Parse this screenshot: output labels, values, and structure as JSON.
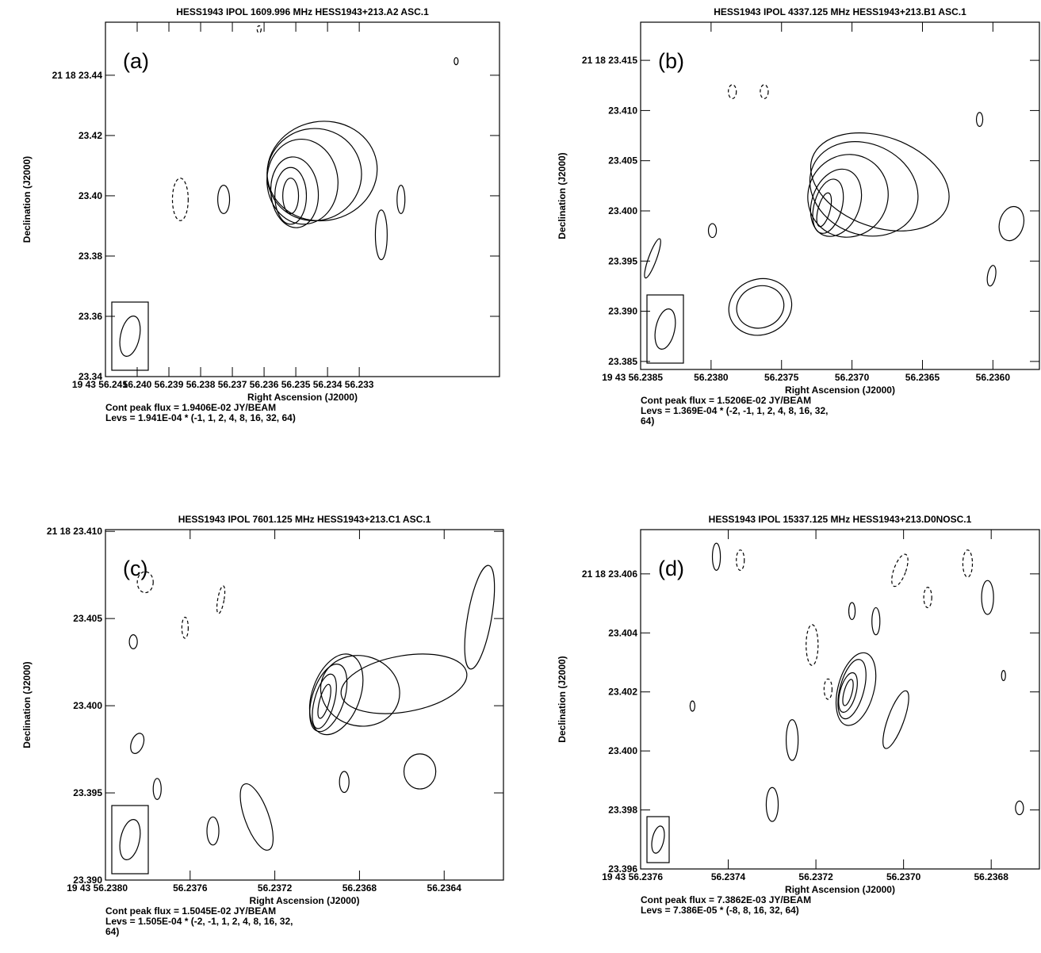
{
  "chart_data": [
    {
      "type": "contour",
      "title": "HESS1943  IPOL  1609.996 MHz  HESS1943+213.A2 ASC.1",
      "panel_label": "(a)",
      "xlabel": "Right Ascension (J2000)",
      "ylabel": "Declination (J2000)",
      "xlim": [
        56.241,
        56.22858
      ],
      "ylim": [
        23.34,
        23.4576
      ],
      "xticks": [
        {
          "value": 56.241,
          "label": "19 43 56.241"
        },
        {
          "value": 56.24,
          "label": "56.240"
        },
        56.239,
        56.238,
        56.237,
        56.236,
        56.235,
        56.234,
        56.233
      ],
      "yticks": [
        23.34,
        23.36,
        23.38,
        {
          "value": 23.4,
          "label": "23.40"
        },
        23.42,
        {
          "value": 23.44,
          "label": "21 18 23.44"
        }
      ],
      "peak_flux": "Cont peak flux =  1.9406E-02 JY/BEAM",
      "levels": [
        "Levs = 1.941E-04 * (-1, 1, 2, 4, 8, 16, 32, 64)"
      ]
    },
    {
      "type": "contour",
      "title": "HESS1943  IPOL  4337.125 MHz  HESS1943+213.B1 ASC.1",
      "panel_label": "(b)",
      "xlabel": "Right Ascension (J2000)",
      "ylabel": "Declination (J2000)",
      "xlim": [
        56.2385,
        56.23567
      ],
      "ylim": [
        23.3842,
        23.4188
      ],
      "xticks": [
        {
          "value": 56.2385,
          "label": "19 43 56.2385"
        },
        {
          "value": 56.238,
          "label": "56.2380"
        },
        56.2375,
        {
          "value": 56.237,
          "label": "56.2370"
        },
        56.2365,
        {
          "value": 56.236,
          "label": "56.2360"
        }
      ],
      "yticks": [
        23.385,
        {
          "value": 23.39,
          "label": "23.390"
        },
        23.395,
        {
          "value": 23.4,
          "label": "23.400"
        },
        23.405,
        {
          "value": 23.41,
          "label": "23.410"
        },
        {
          "value": 23.415,
          "label": "21 18 23.415"
        }
      ],
      "peak_flux": "Cont peak flux =  1.5206E-02 JY/BEAM",
      "levels": [
        "Levs = 1.369E-04 * (-2, -1, 1, 2, 4, 8, 16, 32,",
        "64)"
      ]
    },
    {
      "type": "contour",
      "title": "HESS1943  IPOL  7601.125 MHz  HESS1943+213.C1 ASC.1",
      "panel_label": "(c)",
      "xlabel": "Right Ascension (J2000)",
      "ylabel": "Declination (J2000)",
      "xlim": [
        56.238,
        56.23612
      ],
      "ylim": [
        23.39,
        23.4101
      ],
      "xticks": [
        {
          "value": 56.238,
          "label": "19 43 56.2380"
        },
        56.2376,
        56.2372,
        56.2368,
        56.2364
      ],
      "yticks": [
        {
          "value": 23.39,
          "label": "23.390"
        },
        23.395,
        {
          "value": 23.4,
          "label": "23.400"
        },
        23.405,
        {
          "value": 23.41,
          "label": "21 18 23.410"
        }
      ],
      "peak_flux": "Cont peak flux =  1.5045E-02 JY/BEAM",
      "levels": [
        "Levs = 1.505E-04 * (-2, -1, 1, 2, 4, 8, 16, 32,",
        "64)"
      ]
    },
    {
      "type": "contour",
      "title": "HESS1943  IPOL  15337.125 MHz  HESS1943+213.D0NOSC.1",
      "panel_label": "(d)",
      "xlabel": "Right Ascension (J2000)",
      "ylabel": "Declination (J2000)",
      "xlim": [
        56.2376,
        56.23669
      ],
      "ylim": [
        23.396,
        23.4075
      ],
      "xticks": [
        {
          "value": 56.2376,
          "label": "19 43 56.2376"
        },
        56.2374,
        56.2372,
        {
          "value": 56.237,
          "label": "56.2370"
        },
        56.2368
      ],
      "yticks": [
        23.396,
        23.398,
        {
          "value": 23.4,
          "label": "23.400"
        },
        23.402,
        23.404,
        {
          "value": 23.406,
          "label": "21 18 23.406"
        }
      ],
      "peak_flux": "Cont peak flux =  7.3862E-03 JY/BEAM",
      "levels": [
        "Levs = 7.386E-05 * (-8, 8, 16, 32, 64)"
      ]
    }
  ]
}
